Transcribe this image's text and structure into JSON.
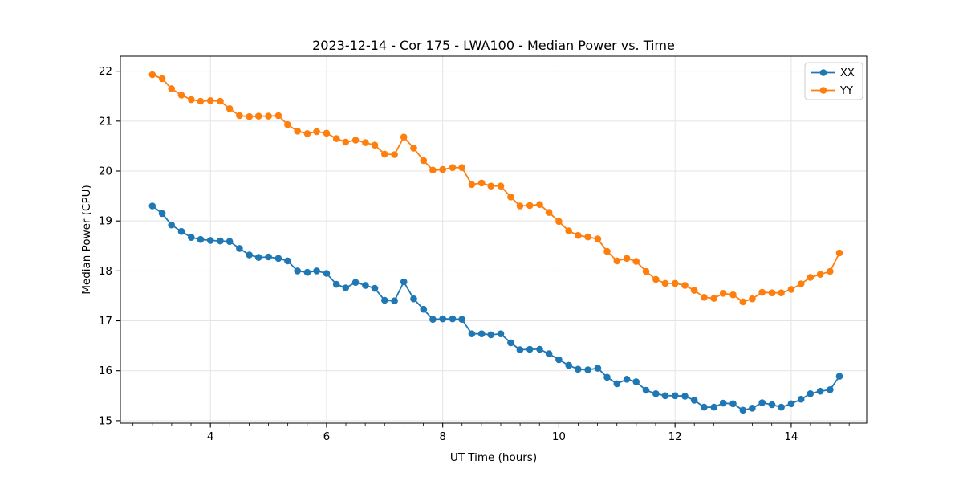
{
  "chart_data": {
    "type": "line",
    "title": "2023-12-14 - Cor 175 - LWA100 - Median Power vs. Time",
    "xlabel": "UT Time (hours)",
    "ylabel": "Median Power (CPU)",
    "xlim": [
      2.45,
      15.3
    ],
    "ylim": [
      14.95,
      22.3
    ],
    "xticks": [
      4,
      6,
      8,
      10,
      12,
      14
    ],
    "yticks": [
      15,
      16,
      17,
      18,
      19,
      20,
      21,
      22
    ],
    "x_minor_step": 0.3333,
    "grid": true,
    "legend_position": "upper right",
    "marker": "circle",
    "x": [
      3.0,
      3.17,
      3.33,
      3.5,
      3.67,
      3.83,
      4.0,
      4.17,
      4.33,
      4.5,
      4.67,
      4.83,
      5.0,
      5.17,
      5.33,
      5.5,
      5.67,
      5.83,
      6.0,
      6.17,
      6.33,
      6.5,
      6.67,
      6.83,
      7.0,
      7.17,
      7.33,
      7.5,
      7.67,
      7.83,
      8.0,
      8.17,
      8.33,
      8.5,
      8.67,
      8.83,
      9.0,
      9.17,
      9.33,
      9.5,
      9.67,
      9.83,
      10.0,
      10.17,
      10.33,
      10.5,
      10.67,
      10.83,
      11.0,
      11.17,
      11.33,
      11.5,
      11.67,
      11.83,
      12.0,
      12.17,
      12.33,
      12.5,
      12.67,
      12.83,
      13.0,
      13.17,
      13.33,
      13.5,
      13.67,
      13.83,
      14.0,
      14.17,
      14.33,
      14.5,
      14.67,
      14.83
    ],
    "series": [
      {
        "name": "XX",
        "color": "#1f77b4",
        "values": [
          19.3,
          19.15,
          18.92,
          18.79,
          18.67,
          18.63,
          18.61,
          18.6,
          18.59,
          18.45,
          18.32,
          18.27,
          18.28,
          18.25,
          18.2,
          18.0,
          17.97,
          18.0,
          17.95,
          17.73,
          17.66,
          17.77,
          17.71,
          17.65,
          17.41,
          17.4,
          17.78,
          17.44,
          17.23,
          17.03,
          17.04,
          17.04,
          17.03,
          16.74,
          16.74,
          16.72,
          16.74,
          16.56,
          16.42,
          16.43,
          16.43,
          16.34,
          16.22,
          16.11,
          16.03,
          16.02,
          16.05,
          15.87,
          15.74,
          15.83,
          15.78,
          15.61,
          15.54,
          15.5,
          15.5,
          15.49,
          15.41,
          15.27,
          15.27,
          15.35,
          15.34,
          15.21,
          15.25,
          15.36,
          15.32,
          15.27,
          15.34,
          15.43,
          15.54,
          15.59,
          15.62,
          15.89
        ]
      },
      {
        "name": "YY",
        "color": "#ff7f0e",
        "values": [
          21.93,
          21.85,
          21.65,
          21.52,
          21.43,
          21.4,
          21.41,
          21.4,
          21.25,
          21.11,
          21.09,
          21.1,
          21.1,
          21.11,
          20.93,
          20.8,
          20.75,
          20.79,
          20.76,
          20.65,
          20.58,
          20.62,
          20.57,
          20.52,
          20.34,
          20.33,
          20.68,
          20.46,
          20.21,
          20.02,
          20.03,
          20.07,
          20.07,
          19.73,
          19.76,
          19.7,
          19.7,
          19.48,
          19.3,
          19.31,
          19.33,
          19.17,
          18.99,
          18.8,
          18.71,
          18.68,
          18.64,
          18.39,
          18.2,
          18.25,
          18.19,
          17.99,
          17.83,
          17.75,
          17.75,
          17.71,
          17.61,
          17.47,
          17.45,
          17.55,
          17.52,
          17.38,
          17.44,
          17.57,
          17.56,
          17.56,
          17.63,
          17.74,
          17.87,
          17.93,
          17.99,
          18.36
        ]
      }
    ]
  }
}
